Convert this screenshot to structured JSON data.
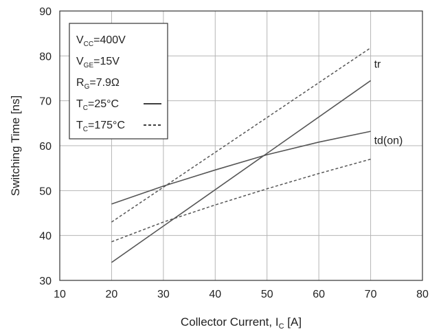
{
  "chart_data": {
    "type": "line",
    "xlabel": "Collector Current, I",
    "xlabel_sub": "C",
    "xlabel_unit": " [A]",
    "ylabel": "Switching Time [ns]",
    "xlim": [
      10,
      80
    ],
    "ylim": [
      30,
      90
    ],
    "x_ticks": [
      10,
      20,
      30,
      40,
      50,
      60,
      70,
      80
    ],
    "y_ticks": [
      30,
      40,
      50,
      60,
      70,
      80,
      90
    ],
    "grid": true,
    "legend_position": "top-left",
    "legend": {
      "conditions": [
        {
          "main": "V",
          "sub": "CC",
          "rest": "=400V"
        },
        {
          "main": "V",
          "sub": "GE",
          "rest": "=15V"
        },
        {
          "main": "R",
          "sub": "G",
          "rest": "=7.9Ω"
        }
      ],
      "styles": [
        {
          "main": "T",
          "sub": "C",
          "rest": "=25°C",
          "dash": "solid"
        },
        {
          "main": "T",
          "sub": "C",
          "rest": "=175°C",
          "dash": "dashed"
        }
      ]
    },
    "series": [
      {
        "label": "tr",
        "temp": "25°C",
        "dash": "solid",
        "x": [
          20,
          70
        ],
        "y": [
          34,
          74.5
        ]
      },
      {
        "label": "tr",
        "temp": "175°C",
        "dash": "dashed",
        "x": [
          20,
          70
        ],
        "y": [
          43,
          81.8
        ]
      },
      {
        "label": "td(on)",
        "temp": "25°C",
        "dash": "solid",
        "x": [
          20,
          30,
          40,
          50,
          60,
          70
        ],
        "y": [
          47,
          51,
          54.6,
          58,
          60.8,
          63.2
        ]
      },
      {
        "label": "td(on)",
        "temp": "175°C",
        "dash": "dashed",
        "x": [
          20,
          30,
          40,
          50,
          60,
          70
        ],
        "y": [
          38.6,
          43,
          46.8,
          50.4,
          53.8,
          57
        ]
      }
    ],
    "series_labels": [
      {
        "text": "tr",
        "x": 70,
        "y": 78
      },
      {
        "text": "td(on)",
        "x": 70,
        "y": 61
      }
    ]
  }
}
